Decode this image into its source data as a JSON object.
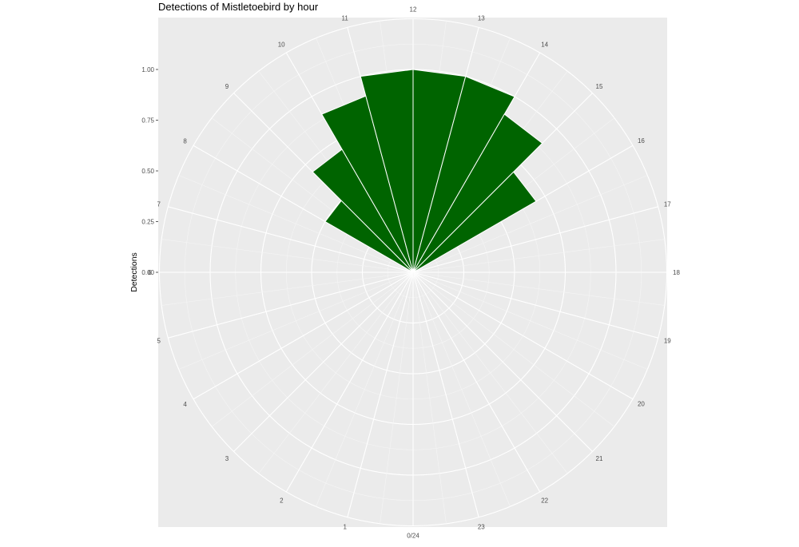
{
  "chart_data": {
    "type": "bar",
    "coord": "polar",
    "title": "Detections of Mistletoebird by hour",
    "xlabel": "",
    "ylabel": "Detections",
    "categories": [
      0,
      1,
      2,
      3,
      4,
      5,
      6,
      7,
      8,
      9,
      10,
      11,
      12,
      13,
      14,
      15,
      16,
      17,
      18,
      19,
      20,
      21,
      22,
      23
    ],
    "values": [
      0,
      0,
      0,
      0,
      0,
      0,
      0,
      0,
      0.5,
      0.7,
      0.9,
      1.0,
      1.0,
      1.0,
      0.9,
      0.7,
      0,
      0,
      0,
      0,
      0,
      0,
      0,
      0
    ],
    "angle_labels": [
      "0/24",
      "1",
      "2",
      "3",
      "4",
      "5",
      "6",
      "7",
      "8",
      "9",
      "10",
      "11",
      "12",
      "13",
      "14",
      "15",
      "16",
      "17",
      "18",
      "19",
      "20",
      "21",
      "22",
      "23"
    ],
    "ylim": [
      0,
      1.25
    ],
    "yticks": [
      0,
      0.25,
      0.5,
      0.75,
      1.0
    ],
    "ytick_labels": [
      "0.00",
      "0.25",
      "0.50",
      "0.75",
      "1.00"
    ],
    "bar_color": "#006400",
    "panel_color": "#ebebeb",
    "grid": true
  }
}
